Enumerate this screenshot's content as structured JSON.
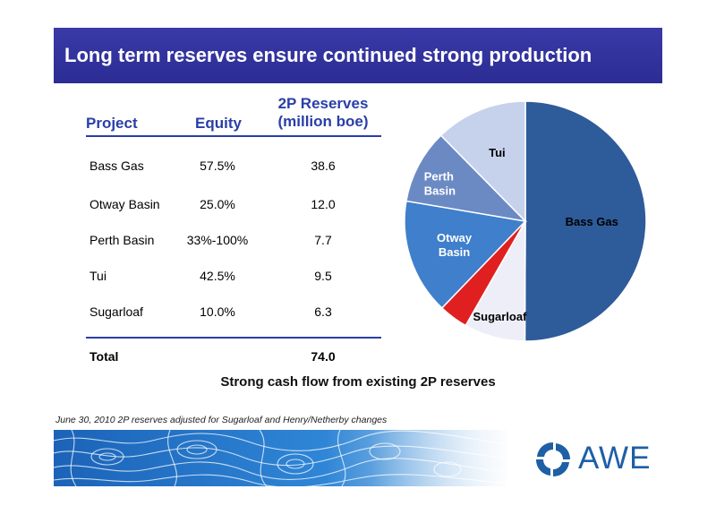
{
  "slide": {
    "title": "Long term reserves ensure continued strong production",
    "subtitle": "Strong cash flow from existing 2P reserves",
    "footnote": "June 30, 2010 2P reserves adjusted for Sugarloaf and Henry/Netherby changes",
    "logo_text": "AWE",
    "colors": {
      "title_bar": "#2f2f9a",
      "header_text": "#2a3ea8",
      "logo": "#1e5fa6"
    }
  },
  "table": {
    "headers": {
      "project": "Project",
      "equity": "Equity",
      "reserves_line1": "2P Reserves",
      "reserves_line2": "(million boe)"
    },
    "rows": [
      {
        "project": "Bass Gas",
        "equity": "57.5%",
        "reserves": "38.6"
      },
      {
        "project": "Otway Basin",
        "equity": "25.0%",
        "reserves": "12.0"
      },
      {
        "project": "Perth Basin",
        "equity": "33%-100%",
        "reserves": "7.7"
      },
      {
        "project": "Tui",
        "equity": "42.5%",
        "reserves": "9.5"
      },
      {
        "project": "Sugarloaf",
        "equity": "10.0%",
        "reserves": "6.3"
      }
    ],
    "total": {
      "label": "Total",
      "reserves": "74.0"
    }
  },
  "chart_data": {
    "type": "pie",
    "title": "",
    "slices": [
      {
        "label": "Bass Gas",
        "value": 38.6,
        "color": "#2e5b9a"
      },
      {
        "label": "Sugarloaf",
        "value": 6.3,
        "color": "#eeeef8"
      },
      {
        "label": "",
        "value": 3.0,
        "color": "#e02020"
      },
      {
        "label": "Otway Basin",
        "value": 12.0,
        "color": "#3f7fcc"
      },
      {
        "label": "Perth Basin",
        "value": 7.7,
        "color": "#6b8ac4"
      },
      {
        "label": "Tui",
        "value": 9.5,
        "color": "#c6d2ec"
      }
    ],
    "legend": "none"
  }
}
